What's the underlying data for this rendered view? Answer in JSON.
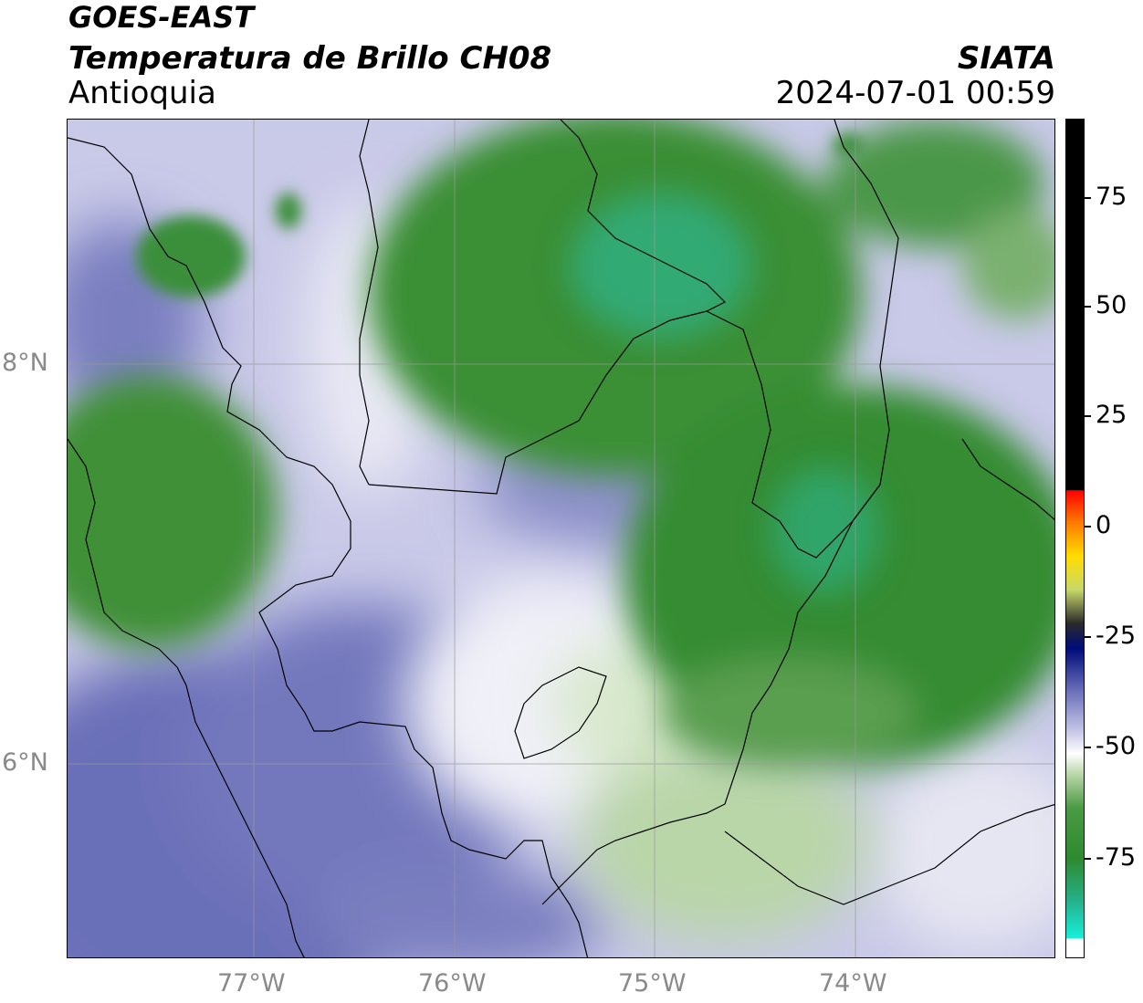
{
  "header": {
    "satellite": "GOES-EAST",
    "product": "Temperatura de Brillo CH08",
    "region": "Antioquia",
    "organization": "SIATA",
    "timestamp": "2024-07-01 00:59"
  },
  "map": {
    "latitude_labels": [
      "8°N",
      "6°N"
    ],
    "longitude_labels": [
      "77°W",
      "76°W",
      "75°W",
      "74°W"
    ]
  },
  "colorbar": {
    "tick_labels": [
      "75",
      "50",
      "25",
      "0",
      "-25",
      "-50",
      "-75"
    ],
    "colors": {
      "blue_purple": "#6a6fb8",
      "light_lavender": "#c9c9e8",
      "white": "#ffffff",
      "light_green": "#b9d6a8",
      "green": "#2f8a2f",
      "teal": "#1fc9a0",
      "black": "#000000",
      "red": "#ff2200"
    }
  }
}
